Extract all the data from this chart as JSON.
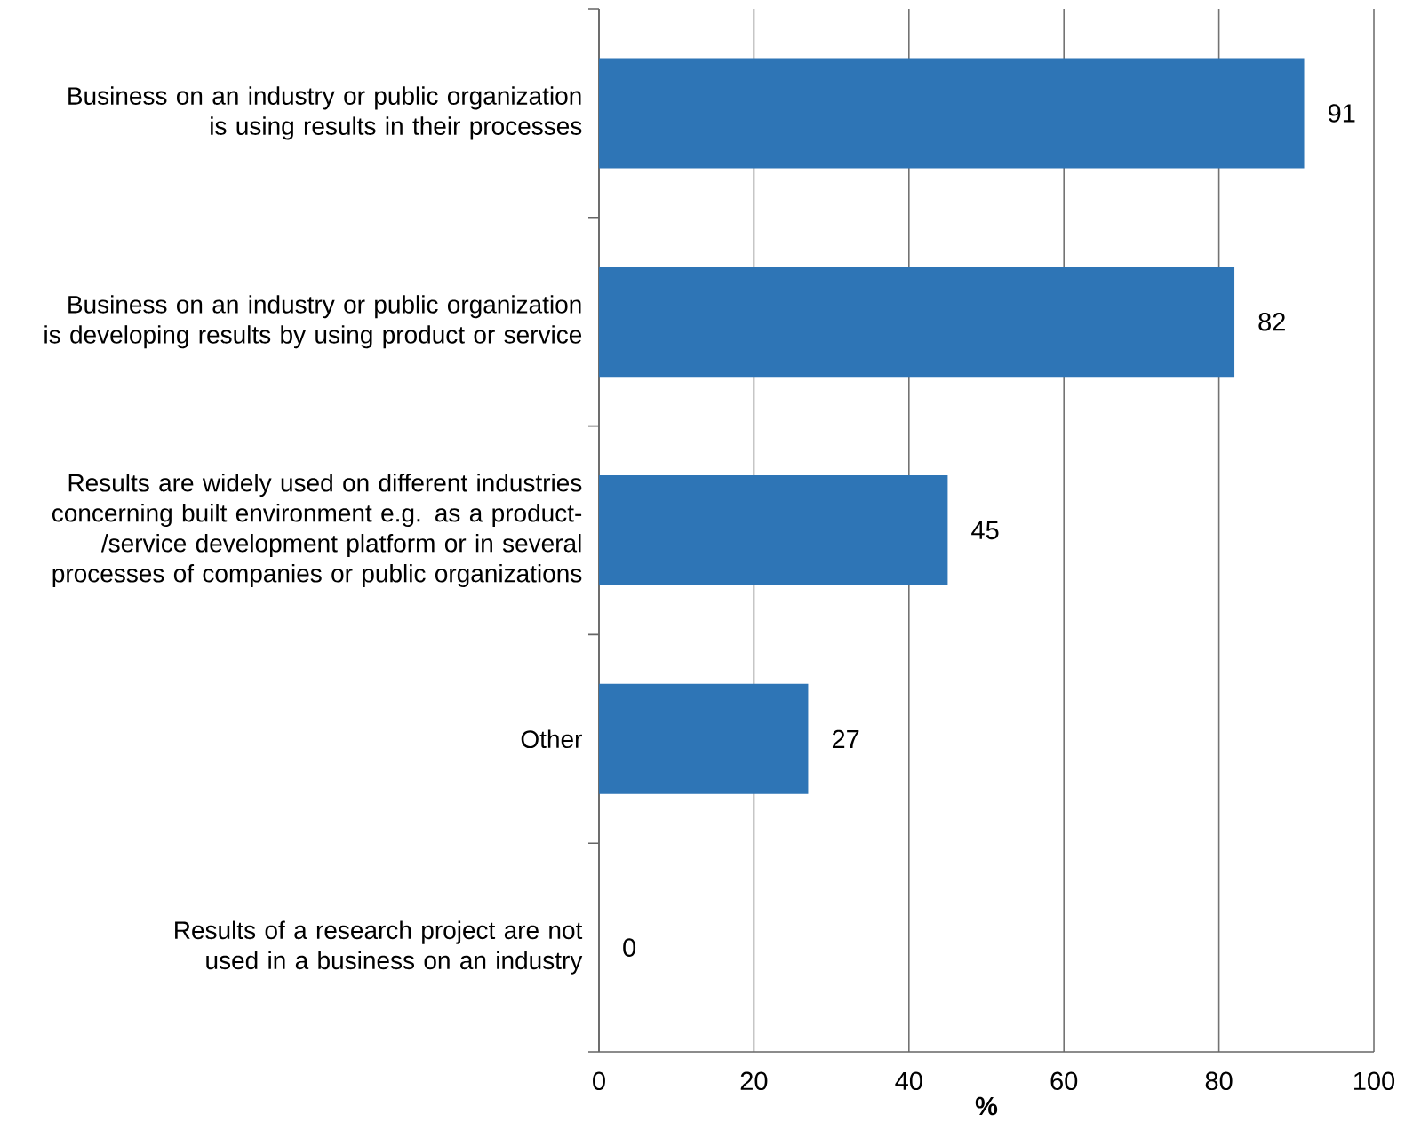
{
  "chart_data": {
    "type": "bar",
    "orientation": "horizontal",
    "categories": [
      "Business on an industry or public organization is using results in their processes",
      "Business on an industry or public organization is developing results by using product or service",
      "Results are widely used on different industries concerning built environment e.g. as a product-/service development platform or in several processes of companies or public organizations",
      "Other",
      "Results of a research project are not used in a business on an industry"
    ],
    "values": [
      91,
      82,
      45,
      27,
      0
    ],
    "color": "#2e75b6",
    "xlim": [
      0,
      100
    ],
    "xticks": [
      0,
      20,
      40,
      60,
      80,
      100
    ],
    "xlabel": "%",
    "grid": "x",
    "data_labels": true
  }
}
